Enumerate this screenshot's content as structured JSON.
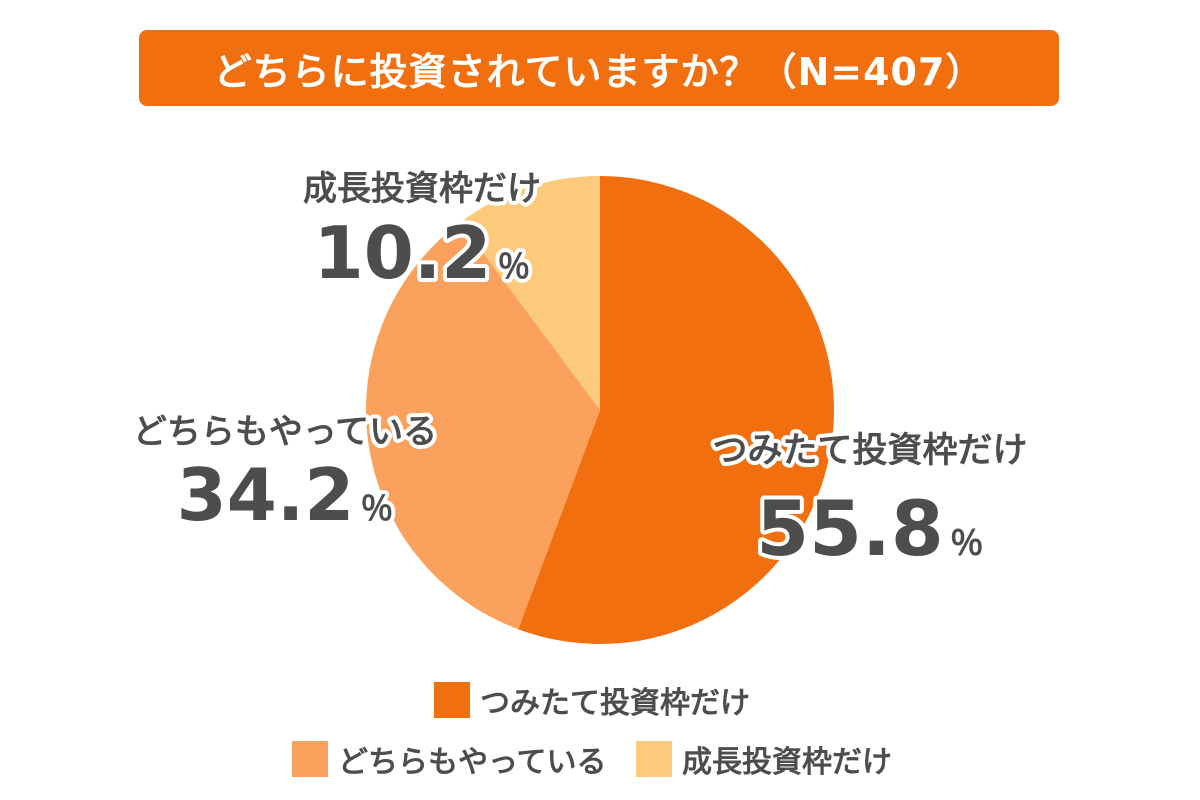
{
  "title": "どちらに投資されていますか？（N=407）",
  "chart_data": {
    "type": "pie",
    "categories": [
      "つみたて投資枠だけ",
      "どちらもやっている",
      "成長投資枠だけ"
    ],
    "values": [
      55.8,
      34.2,
      10.2
    ],
    "value_labels": [
      "55.8",
      "34.2",
      "10.2"
    ],
    "unit": "％",
    "colors": [
      "#f26f0f",
      "#f9a15d",
      "#fdc97a"
    ],
    "start_angle": "12 o'clock",
    "direction": "clockwise",
    "legend": "bottom"
  },
  "legend": {
    "items": [
      {
        "label": "つみたて投資枠だけ",
        "color": "#f26f0f"
      },
      {
        "label": "どちらもやっている",
        "color": "#f9a15d"
      },
      {
        "label": "成長投資枠だけ",
        "color": "#fdc97a"
      }
    ]
  }
}
